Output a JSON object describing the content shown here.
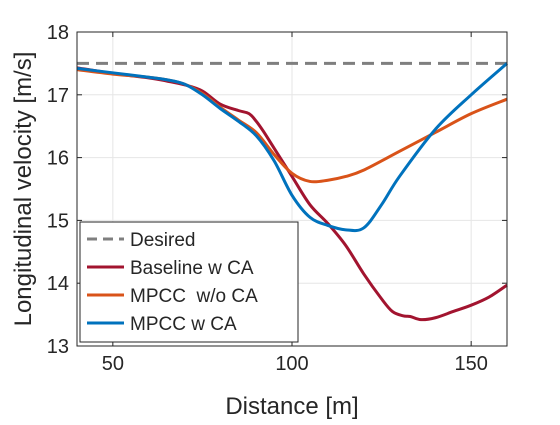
{
  "chart_data": {
    "type": "line",
    "title": "",
    "xlabel": "Distance [m]",
    "ylabel": "Longitudinal velocity [m/s]",
    "xlim": [
      40,
      160
    ],
    "ylim": [
      13,
      18
    ],
    "xticks": [
      50,
      100,
      150
    ],
    "yticks": [
      13,
      14,
      15,
      16,
      17,
      18
    ],
    "xtick_labels": [
      "50",
      "100",
      "150"
    ],
    "ytick_labels": [
      "13",
      "14",
      "15",
      "16",
      "17",
      "18"
    ],
    "grid": true,
    "legend_position": "bottom-left",
    "series": [
      {
        "name": "Desired",
        "color": "#7f7f7f",
        "style": "dashed",
        "x": [
          40,
          160
        ],
        "y": [
          17.5,
          17.5
        ]
      },
      {
        "name": "Baseline w CA",
        "color": "#a2142f",
        "style": "solid",
        "x": [
          40,
          50,
          60,
          65,
          70,
          75,
          80,
          85,
          88,
          90,
          92,
          95,
          100,
          105,
          110,
          115,
          120,
          125,
          128,
          131,
          133,
          136,
          140,
          145,
          150,
          155,
          160
        ],
        "y": [
          17.43,
          17.34,
          17.27,
          17.22,
          17.16,
          17.06,
          16.85,
          16.75,
          16.7,
          16.58,
          16.42,
          16.15,
          15.7,
          15.25,
          14.95,
          14.6,
          14.15,
          13.75,
          13.55,
          13.48,
          13.47,
          13.42,
          13.45,
          13.55,
          13.65,
          13.78,
          13.97
        ]
      },
      {
        "name": "MPCC  w/o CA",
        "color": "#d95319",
        "style": "solid",
        "x": [
          40,
          50,
          60,
          65,
          70,
          75,
          80,
          85,
          90,
          95,
          100,
          105,
          110,
          115,
          120,
          130,
          140,
          150,
          160
        ],
        "y": [
          17.4,
          17.33,
          17.28,
          17.24,
          17.17,
          17.02,
          16.8,
          16.6,
          16.4,
          16.05,
          15.75,
          15.62,
          15.64,
          15.7,
          15.8,
          16.1,
          16.4,
          16.7,
          16.93
        ]
      },
      {
        "name": "MPCC w CA",
        "color": "#0072bd",
        "style": "solid",
        "x": [
          40,
          50,
          60,
          65,
          70,
          75,
          80,
          85,
          90,
          95,
          100,
          105,
          110,
          115,
          120,
          125,
          130,
          140,
          150,
          160
        ],
        "y": [
          17.42,
          17.35,
          17.28,
          17.24,
          17.17,
          17.0,
          16.78,
          16.58,
          16.35,
          15.95,
          15.4,
          15.05,
          14.92,
          14.85,
          14.88,
          15.25,
          15.7,
          16.45,
          17.0,
          17.5
        ]
      }
    ]
  }
}
